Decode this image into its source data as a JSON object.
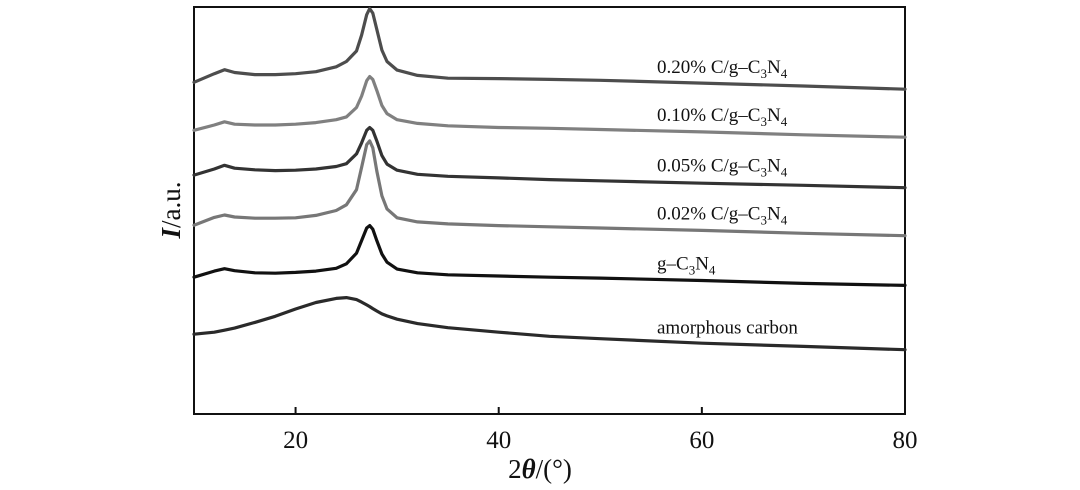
{
  "chart_data": {
    "type": "line",
    "title": "",
    "xlabel": "2θ/(°)",
    "ylabel": "I/a.u.",
    "xlim": [
      10,
      80
    ],
    "ylim": [
      0,
      100
    ],
    "xticks": [
      20,
      40,
      60,
      80
    ],
    "y_tick_labels_shown": false,
    "grid": false,
    "legend": "inline labels to the right of each curve",
    "x": [
      10,
      12,
      13,
      14,
      16,
      18,
      20,
      22,
      24,
      25,
      26,
      26.5,
      27,
      27.3,
      27.6,
      28,
      28.5,
      29,
      30,
      32,
      35,
      40,
      45,
      50,
      60,
      70,
      80
    ],
    "series": [
      {
        "name": "0.20% C/g–C3N4",
        "label_main": "0.20% C/g–C",
        "label_parts": [
          "3",
          "N",
          "4"
        ],
        "color": "#4d4d4d",
        "values": [
          81.5,
          83.6,
          84.6,
          83.9,
          83.4,
          83.4,
          83.6,
          84.1,
          85.3,
          86.6,
          89.2,
          93.1,
          98.1,
          99.6,
          98.5,
          94.5,
          89.4,
          86.6,
          84.5,
          83.2,
          82.5,
          82.4,
          82.2,
          82.0,
          81.3,
          80.6,
          79.8
        ]
      },
      {
        "name": "0.10% C/g–C3N4",
        "label_main": "0.10% C/g–C",
        "label_parts": [
          "3",
          "N",
          "4"
        ],
        "color": "#808080",
        "values": [
          69.7,
          71.0,
          71.8,
          71.2,
          71.0,
          71.0,
          71.2,
          71.6,
          72.3,
          73.0,
          75.3,
          78.1,
          81.9,
          82.9,
          82.2,
          79.5,
          75.8,
          73.8,
          72.3,
          71.4,
          70.8,
          70.4,
          70.2,
          69.9,
          69.3,
          68.6,
          68.0
        ]
      },
      {
        "name": "0.05% C/g–C3N4",
        "label_main": "0.05% C/g–C",
        "label_parts": [
          "3",
          "N",
          "4"
        ],
        "color": "#333333",
        "values": [
          58.7,
          60.2,
          61.1,
          60.4,
          60.0,
          59.8,
          59.9,
          60.2,
          60.8,
          61.5,
          63.9,
          66.6,
          69.7,
          70.4,
          69.7,
          67.1,
          63.5,
          61.4,
          59.9,
          58.9,
          58.4,
          58.0,
          57.6,
          57.3,
          56.7,
          56.2,
          55.6
        ]
      },
      {
        "name": "0.02% C/g–C3N4",
        "label_main": "0.02% C/g–C",
        "label_parts": [
          "3",
          "N",
          "4"
        ],
        "color": "#777777",
        "values": [
          46.4,
          48.3,
          48.9,
          48.4,
          48.1,
          48.1,
          48.2,
          48.8,
          50.0,
          51.4,
          55.1,
          60.6,
          66.2,
          67.1,
          65.4,
          59.7,
          53.6,
          50.4,
          48.2,
          47.2,
          46.7,
          46.3,
          46.0,
          45.7,
          45.1,
          44.4,
          43.8
        ]
      },
      {
        "name": "g–C3N4",
        "label_main": "g–C",
        "label_parts": [
          "3",
          "N",
          "4"
        ],
        "color": "#111111",
        "values": [
          33.6,
          35.1,
          35.7,
          35.2,
          34.7,
          34.6,
          34.8,
          35.1,
          35.8,
          36.9,
          39.5,
          42.6,
          45.7,
          46.3,
          45.4,
          42.6,
          39.3,
          37.3,
          35.6,
          34.7,
          34.2,
          33.9,
          33.6,
          33.4,
          32.8,
          32.1,
          31.6
        ]
      },
      {
        "name": "amorphous carbon",
        "label_main": "amorphous carbon",
        "label_parts": [],
        "color": "#2a2a2a",
        "values": [
          19.6,
          20.1,
          20.6,
          21.1,
          22.5,
          24.0,
          25.8,
          27.4,
          28.4,
          28.6,
          28.1,
          27.5,
          26.8,
          26.4,
          25.9,
          25.3,
          24.6,
          24.1,
          23.3,
          22.2,
          21.2,
          20.1,
          19.1,
          18.5,
          17.4,
          16.6,
          15.8
        ]
      }
    ]
  }
}
